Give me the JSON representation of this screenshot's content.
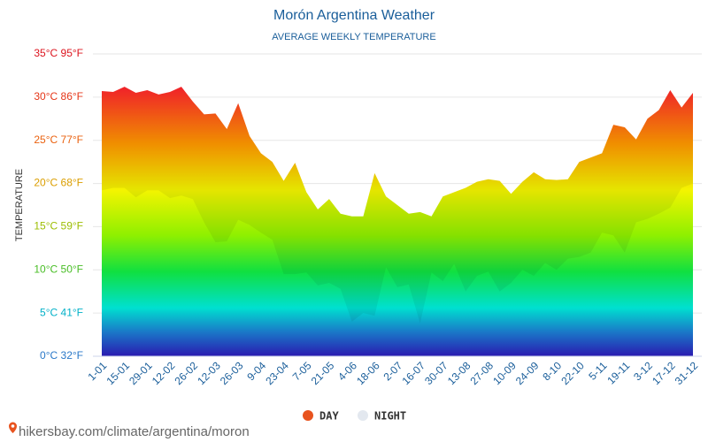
{
  "chart_data": {
    "type": "area",
    "title": "Morón Argentina Weather",
    "subtitle": "AVERAGE WEEKLY TEMPERATURE",
    "y_label": "TEMPERATURE",
    "source": "hikersbay.com/climate/argentina/moron",
    "categories": [
      "1-01",
      null,
      "15-01",
      null,
      "29-01",
      null,
      "12-02",
      null,
      "26-02",
      null,
      "12-03",
      null,
      "26-03",
      null,
      "9-04",
      null,
      "23-04",
      null,
      "7-05",
      null,
      "21-05",
      null,
      "4-06",
      null,
      "18-06",
      null,
      "2-07",
      null,
      "16-07",
      null,
      "30-07",
      null,
      "13-08",
      null,
      "27-08",
      null,
      "10-09",
      null,
      "24-09",
      null,
      "8-10",
      null,
      "22-10",
      null,
      "5-11",
      null,
      "19-11",
      null,
      "3-12",
      null,
      "17-12",
      null,
      "31-12"
    ],
    "series": [
      {
        "name": "DAY",
        "color": "#e8531e",
        "values": [
          30.7,
          30.6,
          31.2,
          30.5,
          30.8,
          30.3,
          30.6,
          31.2,
          29.5,
          28.0,
          28.1,
          26.3,
          29.3,
          25.5,
          23.5,
          22.5,
          20.3,
          22.4,
          19.0,
          17.0,
          18.2,
          16.5,
          16.2,
          16.2,
          21.2,
          18.5,
          17.5,
          16.5,
          16.7,
          16.2,
          18.5,
          19.0,
          19.5,
          20.2,
          20.5,
          20.3,
          18.8,
          20.2,
          21.3,
          20.5,
          20.4,
          20.5,
          22.5,
          23.0,
          23.5,
          26.8,
          26.5,
          25.1,
          27.5,
          28.5,
          30.8,
          28.8,
          30.5
        ]
      },
      {
        "name": "NIGHT",
        "color": "#e3e8ef",
        "values": [
          19.2,
          19.5,
          19.5,
          18.4,
          19.2,
          19.2,
          18.3,
          18.6,
          18.2,
          15.5,
          13.2,
          13.3,
          15.8,
          15.2,
          14.3,
          13.5,
          9.5,
          9.5,
          9.7,
          8.2,
          8.5,
          7.8,
          4.0,
          5.0,
          4.7,
          10.3,
          8.0,
          8.3,
          3.8,
          9.7,
          8.7,
          10.7,
          7.5,
          9.3,
          9.8,
          7.5,
          8.5,
          10.0,
          9.3,
          10.8,
          10.0,
          11.3,
          11.5,
          12.0,
          14.3,
          14.0,
          12.0,
          15.5,
          15.9,
          16.5,
          17.2,
          19.5,
          20.0
        ]
      }
    ],
    "ylim": [
      0,
      35
    ],
    "yticks": [
      {
        "value": 0,
        "label": "0°C 32°F"
      },
      {
        "value": 5,
        "label": "5°C 41°F"
      },
      {
        "value": 10,
        "label": "10°C 50°F"
      },
      {
        "value": 15,
        "label": "15°C 59°F"
      },
      {
        "value": 20,
        "label": "20°C 68°F"
      },
      {
        "value": 25,
        "label": "25°C 77°F"
      },
      {
        "value": 30,
        "label": "30°C 86°F"
      },
      {
        "value": 35,
        "label": "35°C 95°F"
      }
    ],
    "grid": true
  }
}
